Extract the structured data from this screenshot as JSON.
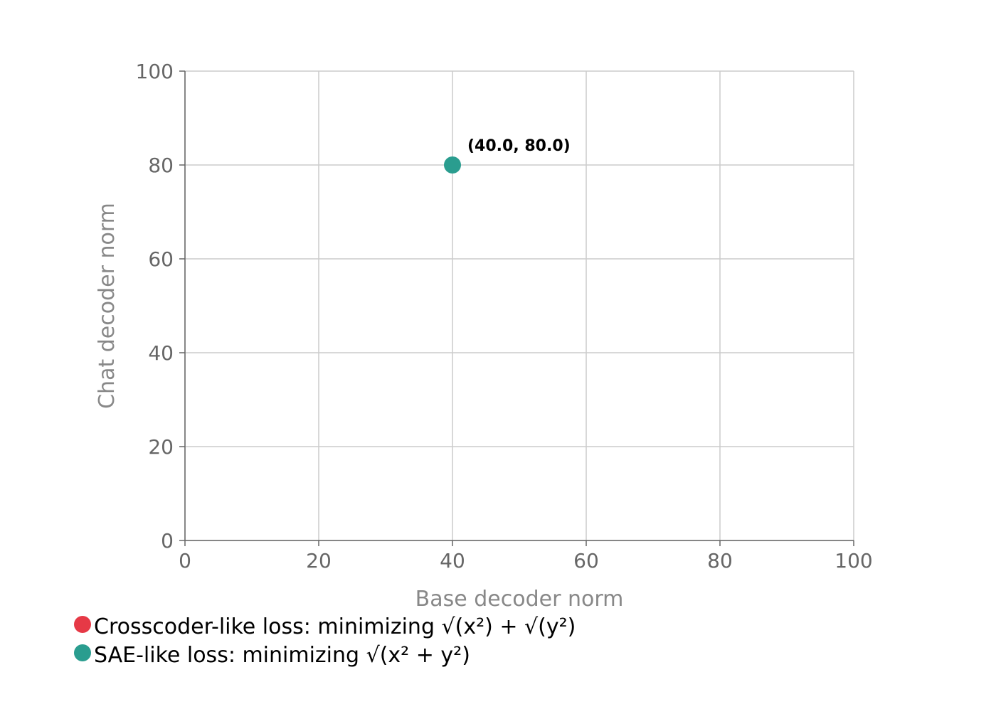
{
  "chart_data": {
    "type": "scatter",
    "title": "",
    "xlabel": "Base decoder norm",
    "ylabel": "Chat decoder norm",
    "xlim": [
      0,
      100
    ],
    "ylim": [
      0,
      100
    ],
    "x_ticks": [
      0,
      20,
      40,
      60,
      80,
      100
    ],
    "y_ticks": [
      0,
      20,
      40,
      60,
      80,
      100
    ],
    "grid": true,
    "legend_position": "bottom-left",
    "series": [
      {
        "name": "Crosscoder-like loss: minimizing √(x²) + √(y²)",
        "color": "#e63946",
        "points": []
      },
      {
        "name": "SAE-like loss: minimizing √(x² + y²)",
        "color": "#2a9d8f",
        "points": [
          {
            "x": 40.0,
            "y": 80.0,
            "label": "(40.0, 80.0)"
          }
        ]
      }
    ]
  }
}
